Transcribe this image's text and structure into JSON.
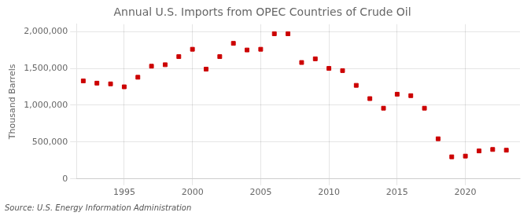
{
  "chart_data": {
    "type": "scatter",
    "title": "Annual U.S. Imports from OPEC Countries of Crude Oil",
    "ylabel": "Thousand Barrels",
    "annotations": [
      "Source: U.S. Energy Information Administration"
    ],
    "x": [
      1992,
      1993,
      1994,
      1995,
      1996,
      1997,
      1998,
      1999,
      2000,
      2001,
      2002,
      2003,
      2004,
      2005,
      2006,
      2007,
      2008,
      2009,
      2010,
      2011,
      2012,
      2013,
      2014,
      2015,
      2016,
      2017,
      2018,
      2019,
      2020,
      2021,
      2022,
      2023
    ],
    "values": [
      1330000,
      1300000,
      1290000,
      1250000,
      1380000,
      1530000,
      1550000,
      1660000,
      1760000,
      1490000,
      1660000,
      1840000,
      1750000,
      1760000,
      1970000,
      1970000,
      1580000,
      1630000,
      1500000,
      1470000,
      1270000,
      1090000,
      960000,
      1150000,
      1130000,
      960000,
      545000,
      300000,
      310000,
      380000,
      400000,
      390000
    ],
    "color": "#cc0000",
    "marker": "square",
    "xlim": [
      1991.5,
      2024
    ],
    "xticks": [
      1995,
      2000,
      2005,
      2010,
      2015,
      2020
    ],
    "ylim": [
      0,
      2100000
    ],
    "yticks": [
      0,
      {
        "value": 500000,
        "label": "500,000"
      },
      {
        "value": 1000000,
        "label": "1,000,000"
      },
      {
        "value": 1500000,
        "label": "1,500,000"
      },
      {
        "value": 2000000,
        "label": "2,000,000"
      }
    ],
    "grid": true
  }
}
